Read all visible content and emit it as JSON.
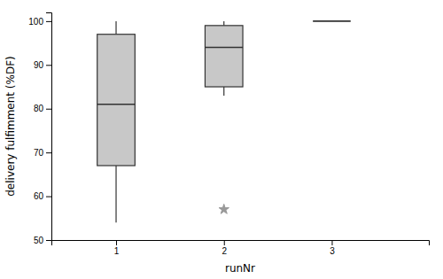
{
  "chart_data": {
    "type": "box",
    "xlabel": "runNr",
    "ylabel": "delivery fulfimment (%DF)",
    "x": [
      1,
      2,
      3
    ],
    "boxes": [
      {
        "q1": 67,
        "median": 81,
        "q3": 97,
        "whislo": 54,
        "whishi": 100,
        "fliers": []
      },
      {
        "q1": 85,
        "median": 94,
        "q3": 99,
        "whislo": 83,
        "whishi": 100,
        "fliers": [
          57
        ]
      },
      {
        "q1": 100,
        "median": 100,
        "q3": 100,
        "whislo": 100,
        "whishi": 100,
        "fliers": []
      }
    ],
    "color": "#c8c8c8",
    "xlim": [
      0.4,
      3.9
    ],
    "xticks": [
      1,
      2,
      3
    ],
    "ylim": [
      50,
      102
    ],
    "yticks": [
      50,
      60,
      70,
      80,
      90,
      100
    ]
  }
}
